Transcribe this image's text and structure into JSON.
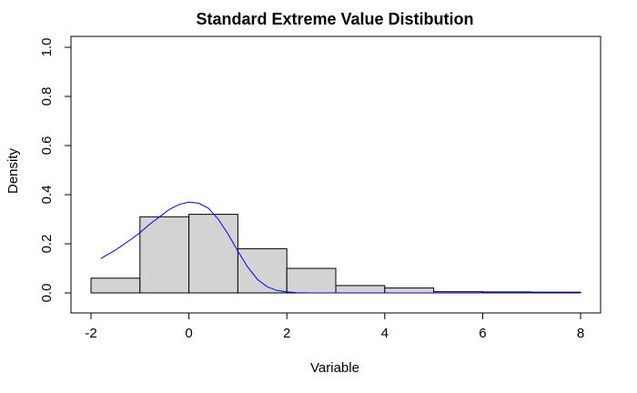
{
  "chart_data": {
    "type": "histogram",
    "title": "Standard Extreme Value Distibution",
    "xlabel": "Variable",
    "ylabel": "Density",
    "xlim": [
      -2,
      8
    ],
    "ylim": [
      0,
      1
    ],
    "x_ticks": [
      -2,
      0,
      2,
      4,
      6,
      8
    ],
    "y_ticks": [
      0.0,
      0.2,
      0.4,
      0.6,
      0.8,
      1.0
    ],
    "y_tick_labels": [
      "0.0",
      "0.2",
      "0.4",
      "0.6",
      "0.8",
      "1.0"
    ],
    "bins": [
      {
        "from": -2,
        "to": -1,
        "density": 0.06
      },
      {
        "from": -1,
        "to": 0,
        "density": 0.31
      },
      {
        "from": 0,
        "to": 1,
        "density": 0.32
      },
      {
        "from": 1,
        "to": 2,
        "density": 0.18
      },
      {
        "from": 2,
        "to": 3,
        "density": 0.1
      },
      {
        "from": 3,
        "to": 4,
        "density": 0.03
      },
      {
        "from": 4,
        "to": 5,
        "density": 0.02
      },
      {
        "from": 5,
        "to": 6,
        "density": 0.005
      },
      {
        "from": 6,
        "to": 7,
        "density": 0.004
      },
      {
        "from": 7,
        "to": 8,
        "density": 0.003
      }
    ],
    "curve": {
      "x": [
        -1.8,
        -1.5,
        -1.2,
        -1.0,
        -0.8,
        -0.6,
        -0.4,
        -0.2,
        0.0,
        0.2,
        0.4,
        0.6,
        0.8,
        1.0,
        1.2,
        1.4,
        1.6,
        1.8,
        2.0,
        2.2,
        2.5,
        3.0,
        4.0,
        5.0,
        6.0,
        7.0,
        8.0
      ],
      "y": [
        0.14,
        0.175,
        0.215,
        0.245,
        0.28,
        0.31,
        0.34,
        0.36,
        0.37,
        0.365,
        0.345,
        0.3,
        0.24,
        0.17,
        0.105,
        0.055,
        0.025,
        0.01,
        0.004,
        0.001,
        0.0,
        0.0,
        0.0,
        0.0,
        0.0,
        0.0,
        0.0
      ]
    },
    "grid": false,
    "colors": {
      "bar_fill": "#d3d3d3",
      "bar_stroke": "#000000",
      "curve": "#0000ff"
    }
  }
}
